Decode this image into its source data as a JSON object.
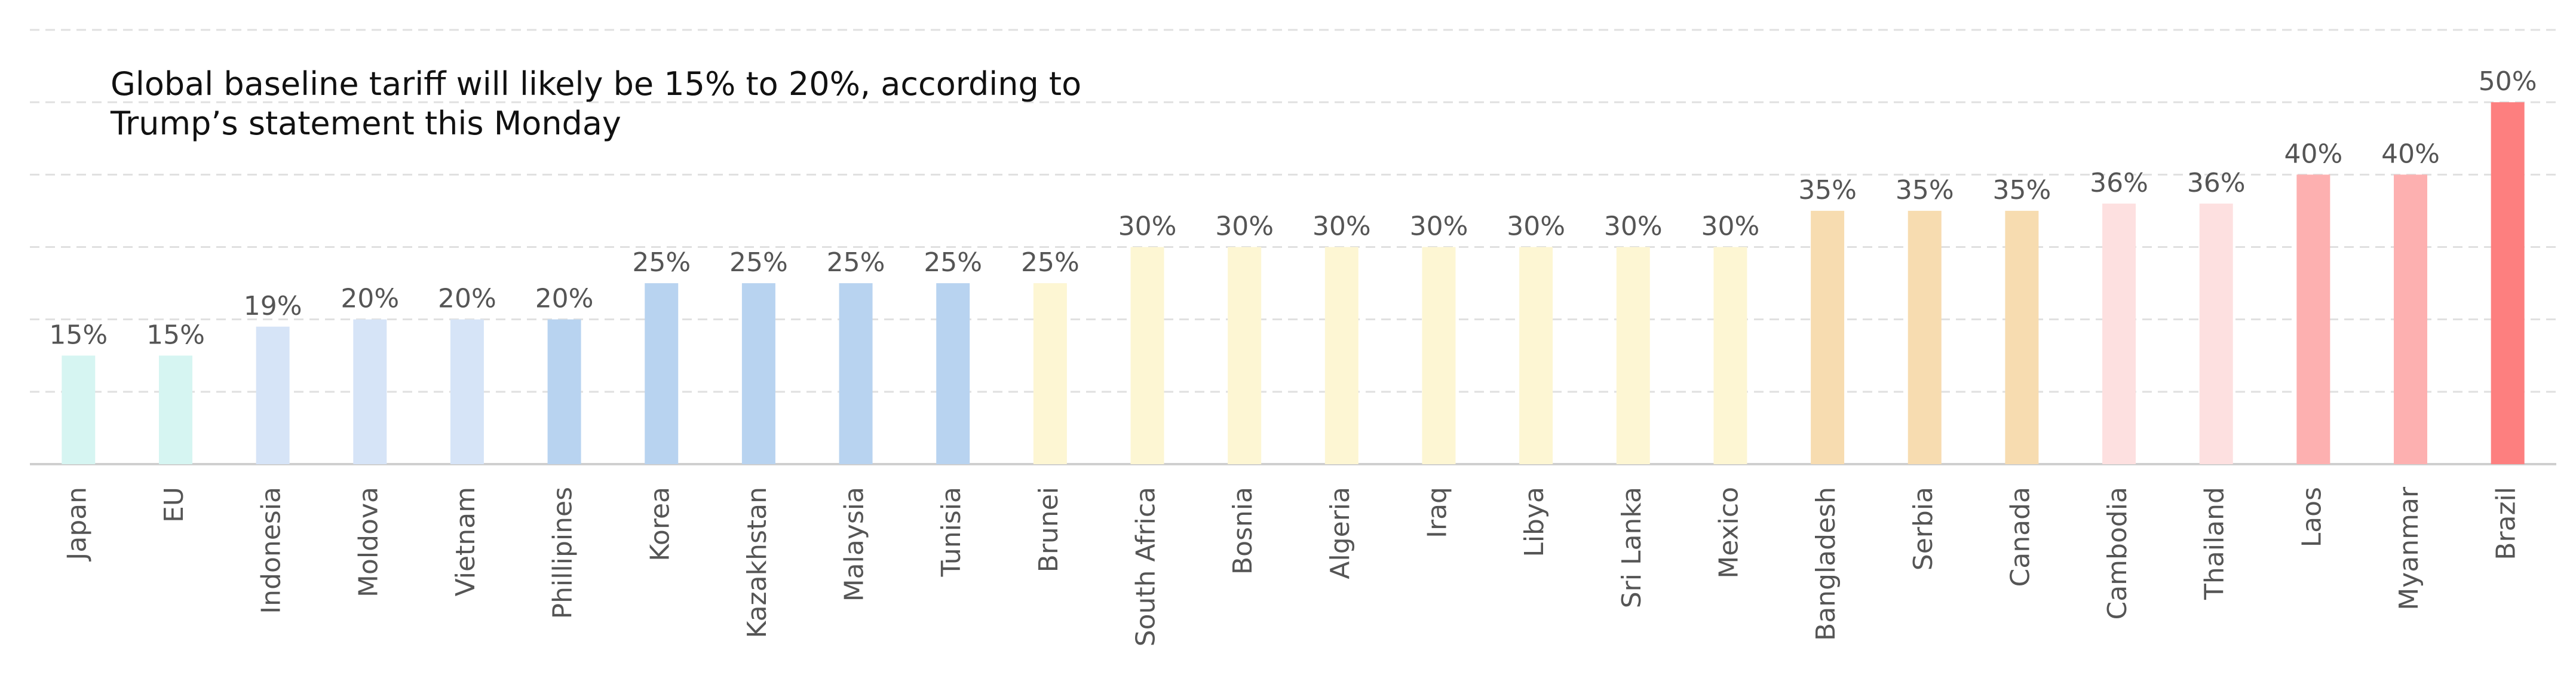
{
  "chart_data": {
    "type": "bar",
    "annotation": "Global baseline tariff will likely be 15% to 20%, according to Trump’s statement this Monday",
    "categories": [
      "Japan",
      "EU",
      "Indonesia",
      "Moldova",
      "Vietnam",
      "Phillipines",
      "Korea",
      "Kazakhstan",
      "Malaysia",
      "Tunisia",
      "Brunei",
      "South Africa",
      "Bosnia",
      "Algeria",
      "Iraq",
      "Libya",
      "Sri Lanka",
      "Mexico",
      "Bangladesh",
      "Serbia",
      "Canada",
      "Cambodia",
      "Thailand",
      "Laos",
      "Myanmar",
      "Brazil"
    ],
    "values": [
      15,
      15,
      19,
      20,
      20,
      20,
      25,
      25,
      25,
      25,
      25,
      30,
      30,
      30,
      30,
      30,
      30,
      30,
      35,
      35,
      35,
      36,
      36,
      40,
      40,
      50
    ],
    "value_labels": [
      "15%",
      "15%",
      "19%",
      "20%",
      "20%",
      "20%",
      "25%",
      "25%",
      "25%",
      "25%",
      "25%",
      "30%",
      "30%",
      "30%",
      "30%",
      "30%",
      "30%",
      "30%",
      "35%",
      "35%",
      "35%",
      "36%",
      "36%",
      "40%",
      "40%",
      "50%"
    ],
    "colors": [
      "#d6f5f2",
      "#d6f5f2",
      "#d6e4f7",
      "#d6e4f7",
      "#d6e4f7",
      "#b8d3f0",
      "#b8d3f0",
      "#b8d3f0",
      "#b8d3f0",
      "#b8d3f0",
      "#fdf6d3",
      "#fdf6d3",
      "#fdf6d3",
      "#fdf6d3",
      "#fdf6d3",
      "#fdf6d3",
      "#fdf6d3",
      "#fdf6d3",
      "#f7dcb0",
      "#f7dcb0",
      "#f7dcb0",
      "#fde0e0",
      "#fde0e0",
      "#fdb0b0",
      "#fdb0b0",
      "#fd7f7f"
    ],
    "ylim": [
      0,
      60
    ],
    "yticks": [
      0,
      10,
      20,
      30,
      40,
      50,
      60
    ],
    "grid": true
  }
}
